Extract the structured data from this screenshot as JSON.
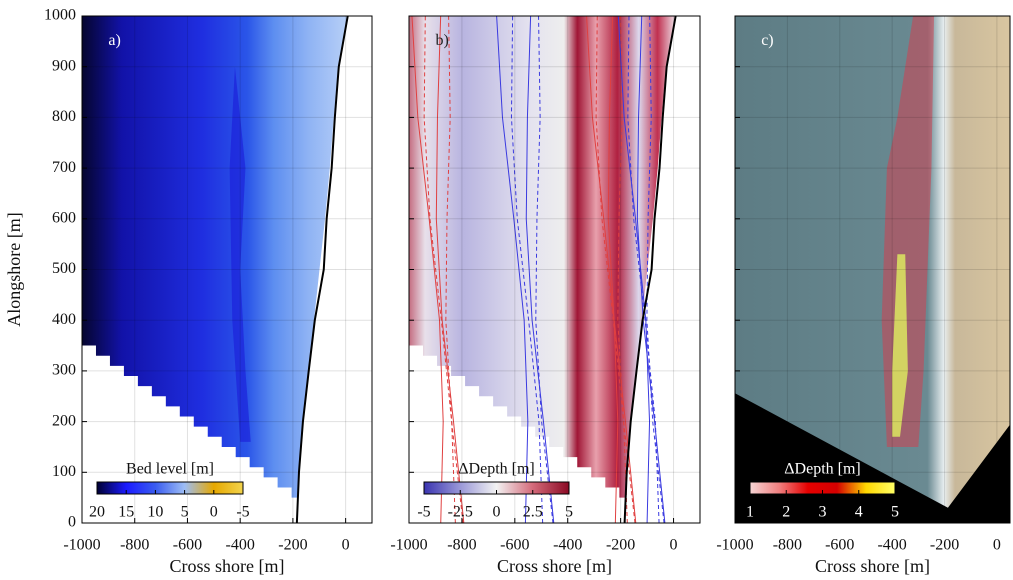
{
  "chart_data": [
    {
      "type": "heatmap",
      "label": "a)",
      "y_label": "Alongshore [m]",
      "x_label": "Cross shore [m]",
      "xlim": [
        -1000,
        100
      ],
      "xticks": [
        -1000,
        -800,
        -600,
        -400,
        -200,
        0
      ],
      "ylim": [
        0,
        1000
      ],
      "yticks": [
        0,
        100,
        200,
        300,
        400,
        500,
        600,
        700,
        800,
        900,
        1000
      ],
      "grid": true,
      "colorbar": {
        "label": "Bed level [m]",
        "clim": [
          20,
          -5
        ],
        "ticks": [
          20,
          15,
          10,
          5,
          0,
          -5
        ],
        "colors": [
          "#000033",
          "#1a1aff",
          "#3a5cf0",
          "#9dbdf5",
          "#e6a800",
          "#f2d34d"
        ]
      },
      "shoreline": {
        "color": "#000000",
        "x": [
          -185,
          -177,
          -162,
          -140,
          -117,
          -83,
          -72,
          -53,
          -41,
          -26,
          8
        ],
        "y": [
          0,
          100,
          200,
          300,
          400,
          500,
          600,
          700,
          800,
          900,
          1000
        ]
      }
    },
    {
      "type": "heatmap",
      "label": "b)",
      "x_label": "Cross shore [m]",
      "xlim": [
        -1000,
        100
      ],
      "xticks": [
        -1000,
        -800,
        -600,
        -400,
        -200,
        0
      ],
      "ylim": [
        0,
        1000
      ],
      "yticks": [
        0,
        100,
        200,
        300,
        400,
        500,
        600,
        700,
        800,
        900,
        1000
      ],
      "grid": true,
      "colorbar": {
        "label": "ΔDepth [m]",
        "clim": [
          -5,
          5
        ],
        "ticks": [
          -5,
          -2.5,
          0,
          2.5,
          5
        ],
        "colors": [
          "#3a34b0",
          "#9a98d8",
          "#f2f2f2",
          "#d46a7a",
          "#8b0a24"
        ]
      },
      "shoreline": {
        "color": "#000000",
        "x": [
          -185,
          -177,
          -162,
          -140,
          -117,
          -83,
          -72,
          -53,
          -41,
          -26,
          8
        ],
        "y": [
          0,
          100,
          200,
          300,
          400,
          500,
          600,
          700,
          800,
          900,
          1000
        ]
      }
    },
    {
      "type": "heatmap",
      "label": "c)",
      "x_label": "Cross shore [m]",
      "xlim": [
        -1000,
        50
      ],
      "xticks": [
        -1000,
        -800,
        -600,
        -400,
        -200,
        0
      ],
      "ylim": [
        0,
        1000
      ],
      "yticks": [
        0,
        100,
        200,
        300,
        400,
        500,
        600,
        700,
        800,
        900,
        1000
      ],
      "grid": true,
      "colorbar": {
        "label": "ΔDepth [m]",
        "clim": [
          1,
          5
        ],
        "ticks": [
          1,
          2,
          3,
          4,
          5
        ],
        "colors": [
          "#f6d5d5",
          "#f08080",
          "#e60000",
          "#d40000",
          "#ffd700",
          "#ffff66"
        ]
      }
    }
  ]
}
